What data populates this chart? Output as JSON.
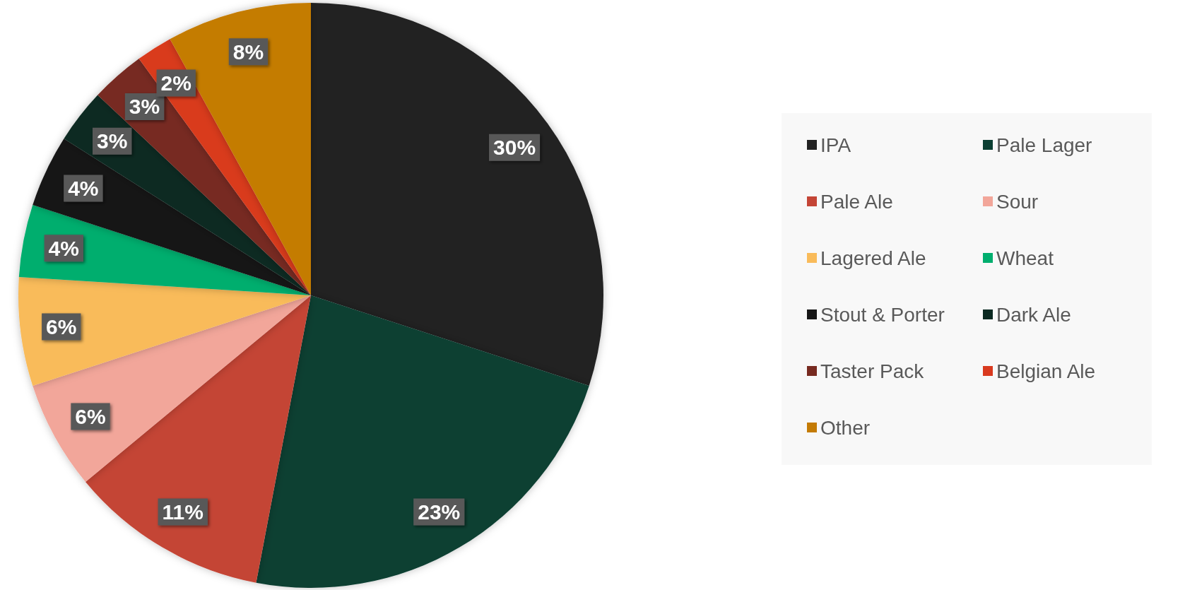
{
  "chart_data": {
    "type": "pie",
    "categories": [
      "IPA",
      "Pale Lager",
      "Pale Ale",
      "Sour",
      "Lagered Ale",
      "Wheat",
      "Stout & Porter",
      "Dark Ale",
      "Taster Pack",
      "Belgian Ale",
      "Other"
    ],
    "values": [
      30,
      23,
      11,
      6,
      6,
      4,
      4,
      3,
      3,
      2,
      8
    ],
    "value_labels": [
      "30%",
      "23%",
      "11%",
      "6%",
      "6%",
      "4%",
      "4%",
      "3%",
      "3%",
      "2%",
      "8%"
    ],
    "colors": [
      "#232323",
      "#0c3f33",
      "#c44536",
      "#f2a69a",
      "#f9bb5a",
      "#00ae6e",
      "#161616",
      "#0b2a22",
      "#772a20",
      "#d93a1f",
      "#c47b05"
    ],
    "legend": "right"
  }
}
